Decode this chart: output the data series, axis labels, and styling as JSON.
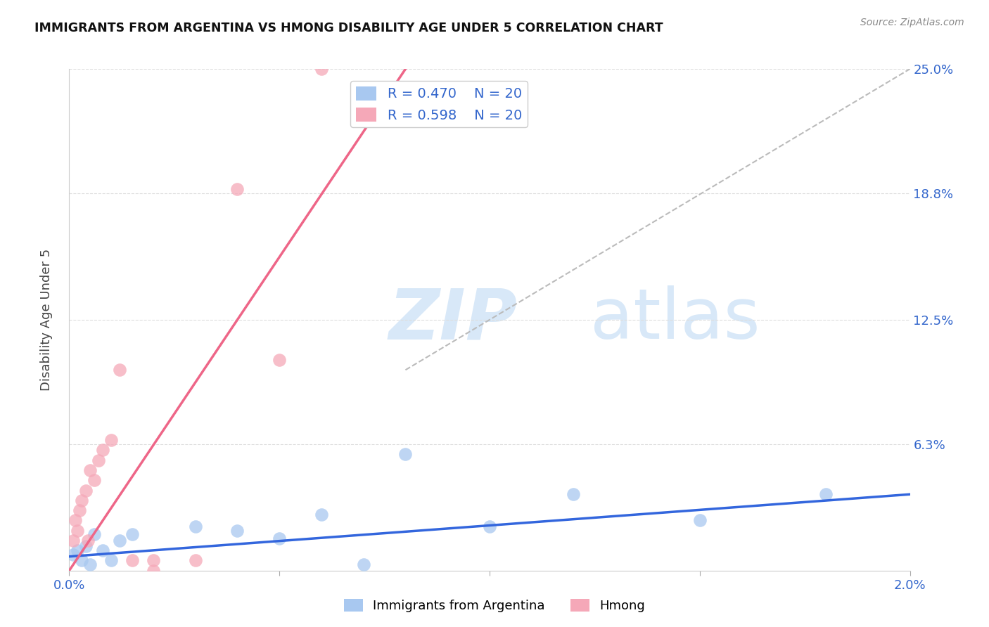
{
  "title": "IMMIGRANTS FROM ARGENTINA VS HMONG DISABILITY AGE UNDER 5 CORRELATION CHART",
  "source": "Source: ZipAtlas.com",
  "ylabel": "Disability Age Under 5",
  "legend_label1": "Immigrants from Argentina",
  "legend_label2": "Hmong",
  "R1": 0.47,
  "N1": 20,
  "R2": 0.598,
  "N2": 20,
  "xlim": [
    0.0,
    0.02
  ],
  "ylim": [
    0.0,
    0.25
  ],
  "ytick_vals": [
    0.0,
    0.063,
    0.125,
    0.188,
    0.25
  ],
  "ytick_labels_right": [
    "6.3%",
    "12.5%",
    "18.8%",
    "25.0%"
  ],
  "ytick_vals_right": [
    0.063,
    0.125,
    0.188,
    0.25
  ],
  "xticks": [
    0.0,
    0.005,
    0.01,
    0.015,
    0.02
  ],
  "xtick_labels": [
    "0.0%",
    "",
    "",
    "",
    "2.0%"
  ],
  "color_blue": "#A8C8F0",
  "color_pink": "#F5A8B8",
  "line_blue": "#3366DD",
  "line_pink": "#EE6688",
  "line_diag_color": "#BBBBBB",
  "watermark": "ZIPAtlas",
  "watermark_color": "#D8E8F8",
  "argentina_x": [
    0.0001,
    0.0002,
    0.0003,
    0.0004,
    0.0005,
    0.0006,
    0.0008,
    0.001,
    0.0012,
    0.0015,
    0.003,
    0.004,
    0.005,
    0.006,
    0.007,
    0.008,
    0.01,
    0.012,
    0.015,
    0.018
  ],
  "argentina_y": [
    0.008,
    0.01,
    0.005,
    0.012,
    0.003,
    0.018,
    0.01,
    0.005,
    0.015,
    0.018,
    0.022,
    0.02,
    0.016,
    0.028,
    0.003,
    0.058,
    0.022,
    0.038,
    0.025,
    0.038
  ],
  "hmong_x": [
    0.0001,
    0.00015,
    0.0002,
    0.00025,
    0.0003,
    0.0004,
    0.00045,
    0.0005,
    0.0006,
    0.0007,
    0.0008,
    0.001,
    0.0012,
    0.0015,
    0.002,
    0.002,
    0.003,
    0.004,
    0.005,
    0.006
  ],
  "hmong_y": [
    0.015,
    0.025,
    0.02,
    0.03,
    0.035,
    0.04,
    0.015,
    0.05,
    0.045,
    0.055,
    0.06,
    0.065,
    0.1,
    0.005,
    0.005,
    0.0,
    0.005,
    0.19,
    0.105,
    0.25
  ],
  "arg_line_x": [
    0.0,
    0.02
  ],
  "arg_line_y": [
    0.007,
    0.038
  ],
  "hmong_line_x": [
    0.0,
    0.008
  ],
  "hmong_line_y": [
    0.0,
    0.25
  ],
  "diag_line_x": [
    0.008,
    0.02
  ],
  "diag_line_y": [
    0.1,
    0.25
  ]
}
